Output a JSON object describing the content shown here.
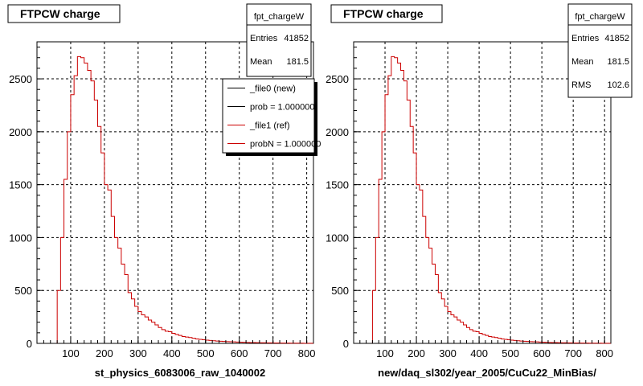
{
  "chart_data": [
    {
      "type": "bar",
      "title": "FTPCW charge",
      "xlabel": "st_physics_6083006_raw_1040002",
      "ylabel": "",
      "xlim": [
        0,
        820
      ],
      "ylim": [
        0,
        2850
      ],
      "xticks": [
        100,
        200,
        300,
        400,
        500,
        600,
        700,
        800
      ],
      "yticks": [
        0,
        500,
        1000,
        1500,
        2000,
        2500
      ],
      "grid": true,
      "bin_width": 10,
      "stats": {
        "name": "fpt_chargeW",
        "rows": [
          {
            "label": "Entries",
            "value": "41852"
          },
          {
            "label": "Mean",
            "value": "181.5"
          }
        ]
      },
      "legend": {
        "placement": "top-right",
        "entries": [
          {
            "label": "_file0 (new)",
            "color": "#000000"
          },
          {
            "label": "prob = 1.000000",
            "color": "#000000"
          },
          {
            "label": "_file1 (ref)",
            "color": "#cc0000"
          },
          {
            "label": "probN = 1.000000",
            "color": "#cc0000"
          }
        ]
      },
      "series": [
        {
          "color": "#cc0000",
          "bin_edges_start": 60,
          "values": [
            500,
            1000,
            1550,
            2000,
            2350,
            2530,
            2710,
            2700,
            2650,
            2580,
            2480,
            2300,
            2050,
            1800,
            1500,
            1450,
            1200,
            1000,
            900,
            750,
            650,
            480,
            420,
            350,
            300,
            270,
            250,
            220,
            200,
            175,
            150,
            130,
            115,
            110,
            95,
            85,
            75,
            65,
            60,
            55,
            48,
            42,
            38,
            34,
            30,
            28,
            25,
            22,
            20,
            18,
            16,
            15,
            14,
            12,
            11,
            10,
            9,
            8,
            8,
            7,
            6,
            6,
            5,
            5,
            4,
            4,
            3,
            3,
            3,
            2,
            2,
            2,
            2,
            1,
            1,
            1
          ]
        }
      ]
    },
    {
      "type": "bar",
      "title": "FTPCW charge",
      "xlabel": "new/daq_sl302/year_2005/CuCu22_MinBias/",
      "ylabel": "",
      "xlim": [
        0,
        820
      ],
      "ylim": [
        0,
        2850
      ],
      "xticks": [
        100,
        200,
        300,
        400,
        500,
        600,
        700,
        800
      ],
      "yticks": [
        0,
        500,
        1000,
        1500,
        2000,
        2500
      ],
      "grid": true,
      "bin_width": 10,
      "stats": {
        "name": "fpt_chargeW",
        "rows": [
          {
            "label": "Entries",
            "value": "41852"
          },
          {
            "label": "Mean",
            "value": "181.5"
          },
          {
            "label": "RMS",
            "value": "102.6"
          }
        ]
      },
      "series": [
        {
          "color": "#cc0000",
          "bin_edges_start": 60,
          "values": [
            500,
            1000,
            1550,
            2000,
            2350,
            2530,
            2710,
            2700,
            2650,
            2580,
            2480,
            2300,
            2050,
            1800,
            1500,
            1450,
            1200,
            1000,
            900,
            750,
            650,
            480,
            420,
            350,
            300,
            270,
            250,
            220,
            200,
            175,
            150,
            130,
            115,
            110,
            95,
            85,
            75,
            65,
            60,
            55,
            48,
            42,
            38,
            34,
            30,
            28,
            25,
            22,
            20,
            18,
            16,
            15,
            14,
            12,
            11,
            10,
            9,
            8,
            8,
            7,
            6,
            6,
            5,
            5,
            4,
            4,
            3,
            3,
            3,
            2,
            2,
            2,
            2,
            1,
            1,
            1
          ]
        }
      ]
    }
  ]
}
